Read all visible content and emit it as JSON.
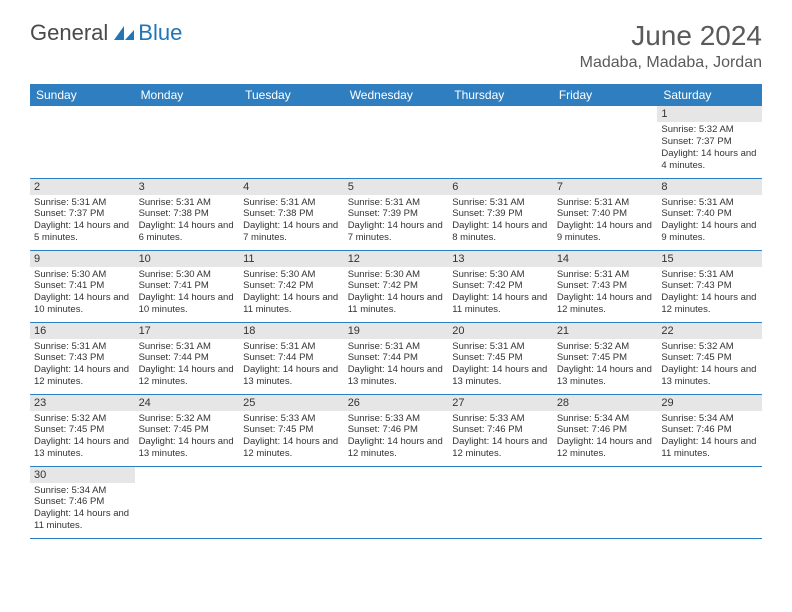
{
  "logo": {
    "text1": "General",
    "text2": "Blue"
  },
  "title": "June 2024",
  "location": "Madaba, Madaba, Jordan",
  "colors": {
    "headerBg": "#2f7fc0",
    "headerFg": "#ffffff",
    "dayNumBg": "#e6e6e6",
    "borderColor": "#2f7fc0",
    "textColor": "#333333",
    "titleColor": "#5a5a5a"
  },
  "dayHeaders": [
    "Sunday",
    "Monday",
    "Tuesday",
    "Wednesday",
    "Thursday",
    "Friday",
    "Saturday"
  ],
  "weeks": [
    [
      null,
      null,
      null,
      null,
      null,
      null,
      {
        "n": "1",
        "sunrise": "5:32 AM",
        "sunset": "7:37 PM",
        "daylight": "14 hours and 4 minutes."
      }
    ],
    [
      {
        "n": "2",
        "sunrise": "5:31 AM",
        "sunset": "7:37 PM",
        "daylight": "14 hours and 5 minutes."
      },
      {
        "n": "3",
        "sunrise": "5:31 AM",
        "sunset": "7:38 PM",
        "daylight": "14 hours and 6 minutes."
      },
      {
        "n": "4",
        "sunrise": "5:31 AM",
        "sunset": "7:38 PM",
        "daylight": "14 hours and 7 minutes."
      },
      {
        "n": "5",
        "sunrise": "5:31 AM",
        "sunset": "7:39 PM",
        "daylight": "14 hours and 7 minutes."
      },
      {
        "n": "6",
        "sunrise": "5:31 AM",
        "sunset": "7:39 PM",
        "daylight": "14 hours and 8 minutes."
      },
      {
        "n": "7",
        "sunrise": "5:31 AM",
        "sunset": "7:40 PM",
        "daylight": "14 hours and 9 minutes."
      },
      {
        "n": "8",
        "sunrise": "5:31 AM",
        "sunset": "7:40 PM",
        "daylight": "14 hours and 9 minutes."
      }
    ],
    [
      {
        "n": "9",
        "sunrise": "5:30 AM",
        "sunset": "7:41 PM",
        "daylight": "14 hours and 10 minutes."
      },
      {
        "n": "10",
        "sunrise": "5:30 AM",
        "sunset": "7:41 PM",
        "daylight": "14 hours and 10 minutes."
      },
      {
        "n": "11",
        "sunrise": "5:30 AM",
        "sunset": "7:42 PM",
        "daylight": "14 hours and 11 minutes."
      },
      {
        "n": "12",
        "sunrise": "5:30 AM",
        "sunset": "7:42 PM",
        "daylight": "14 hours and 11 minutes."
      },
      {
        "n": "13",
        "sunrise": "5:30 AM",
        "sunset": "7:42 PM",
        "daylight": "14 hours and 11 minutes."
      },
      {
        "n": "14",
        "sunrise": "5:31 AM",
        "sunset": "7:43 PM",
        "daylight": "14 hours and 12 minutes."
      },
      {
        "n": "15",
        "sunrise": "5:31 AM",
        "sunset": "7:43 PM",
        "daylight": "14 hours and 12 minutes."
      }
    ],
    [
      {
        "n": "16",
        "sunrise": "5:31 AM",
        "sunset": "7:43 PM",
        "daylight": "14 hours and 12 minutes."
      },
      {
        "n": "17",
        "sunrise": "5:31 AM",
        "sunset": "7:44 PM",
        "daylight": "14 hours and 12 minutes."
      },
      {
        "n": "18",
        "sunrise": "5:31 AM",
        "sunset": "7:44 PM",
        "daylight": "14 hours and 13 minutes."
      },
      {
        "n": "19",
        "sunrise": "5:31 AM",
        "sunset": "7:44 PM",
        "daylight": "14 hours and 13 minutes."
      },
      {
        "n": "20",
        "sunrise": "5:31 AM",
        "sunset": "7:45 PM",
        "daylight": "14 hours and 13 minutes."
      },
      {
        "n": "21",
        "sunrise": "5:32 AM",
        "sunset": "7:45 PM",
        "daylight": "14 hours and 13 minutes."
      },
      {
        "n": "22",
        "sunrise": "5:32 AM",
        "sunset": "7:45 PM",
        "daylight": "14 hours and 13 minutes."
      }
    ],
    [
      {
        "n": "23",
        "sunrise": "5:32 AM",
        "sunset": "7:45 PM",
        "daylight": "14 hours and 13 minutes."
      },
      {
        "n": "24",
        "sunrise": "5:32 AM",
        "sunset": "7:45 PM",
        "daylight": "14 hours and 13 minutes."
      },
      {
        "n": "25",
        "sunrise": "5:33 AM",
        "sunset": "7:45 PM",
        "daylight": "14 hours and 12 minutes."
      },
      {
        "n": "26",
        "sunrise": "5:33 AM",
        "sunset": "7:46 PM",
        "daylight": "14 hours and 12 minutes."
      },
      {
        "n": "27",
        "sunrise": "5:33 AM",
        "sunset": "7:46 PM",
        "daylight": "14 hours and 12 minutes."
      },
      {
        "n": "28",
        "sunrise": "5:34 AM",
        "sunset": "7:46 PM",
        "daylight": "14 hours and 12 minutes."
      },
      {
        "n": "29",
        "sunrise": "5:34 AM",
        "sunset": "7:46 PM",
        "daylight": "14 hours and 11 minutes."
      }
    ],
    [
      {
        "n": "30",
        "sunrise": "5:34 AM",
        "sunset": "7:46 PM",
        "daylight": "14 hours and 11 minutes."
      },
      null,
      null,
      null,
      null,
      null,
      null
    ]
  ],
  "labels": {
    "sunrise": "Sunrise:",
    "sunset": "Sunset:",
    "daylight": "Daylight:"
  }
}
